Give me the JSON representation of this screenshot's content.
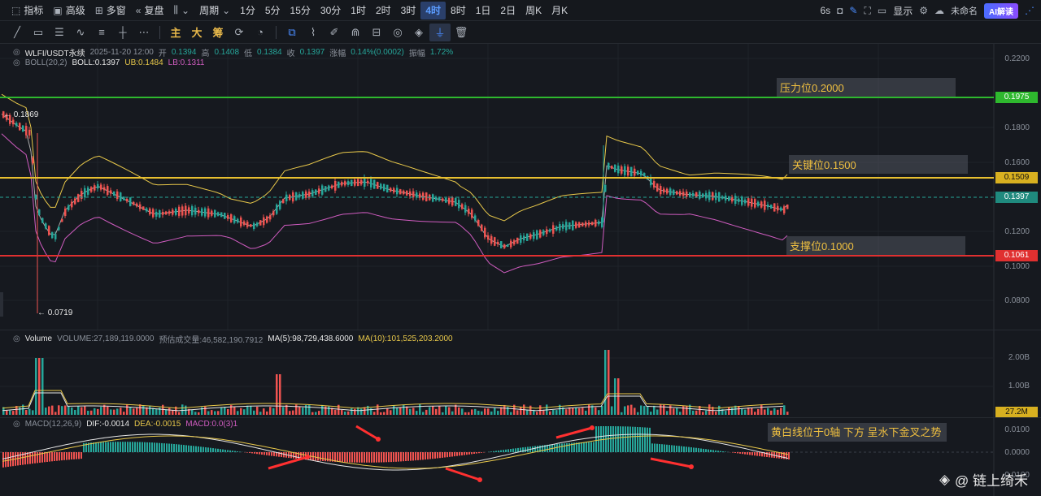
{
  "topbar": {
    "items": [
      {
        "icon": "chart-icon",
        "label": "指标"
      },
      {
        "icon": "calendar-icon",
        "label": "高级"
      },
      {
        "icon": "grid-icon",
        "label": "多窗"
      },
      {
        "icon": "rewind-icon",
        "label": "复盘"
      },
      {
        "icon": "candle-icon",
        "label": ""
      },
      {
        "icon": "",
        "label": "周期"
      }
    ],
    "intervals": [
      "1分",
      "5分",
      "15分",
      "30分",
      "1时",
      "2时",
      "3时",
      "4时",
      "8时",
      "1日",
      "2日",
      "周K",
      "月K"
    ],
    "active_interval": "4时",
    "right": {
      "countdown": "6s",
      "display": "显示",
      "name": "未命名",
      "ai": "AI解读"
    }
  },
  "toolbar": {
    "main_label": "主",
    "big_label": "大",
    "chip_label": "筹"
  },
  "chart": {
    "legend": {
      "symbol": "WLFI/USDT永续",
      "time": "2025-11-20 12:00",
      "open_label": "开",
      "open": "0.1394",
      "high_label": "高",
      "high": "0.1408",
      "low_label": "低",
      "low": "0.1384",
      "close_label": "收",
      "close": "0.1397",
      "chg_label": "涨幅",
      "chg": "0.14%(0.0002)",
      "amp_label": "振幅",
      "amp": "1.72%"
    },
    "boll": {
      "label": "BOLL(20,2)",
      "boll": "BOLL:0.1397",
      "ub": "UB:0.1484",
      "lb": "LB:0.1311"
    },
    "axis": [
      "0.2200",
      "0.1800",
      "0.1600",
      "0.1200",
      "0.1000",
      "0.0800"
    ],
    "tags": [
      {
        "value": "0.1975",
        "color": "#2eb82e"
      },
      {
        "value": "0.1509",
        "color": "#e8c030"
      },
      {
        "value": "0.1397",
        "color": "#26a69a"
      },
      {
        "value": "0.1061",
        "color": "#e03030"
      }
    ],
    "marks": {
      "high": "← 0.1869",
      "low": "← 0.0719"
    },
    "annotations": {
      "resistance": "压力位0.2000",
      "key": "关键位0.1500",
      "support": "支撑位0.1000"
    },
    "colors": {
      "up": "#26a69a",
      "down": "#ef5350",
      "mid": "#e6e6e6",
      "ub": "#e8c84a",
      "lb": "#d05cc0"
    }
  },
  "volume": {
    "label": "Volume",
    "vol": "VOLUME:27,189,119.0000",
    "est": "预估成交量:46,582,190.7912",
    "ma5": "MA(5):98,729,438.6000",
    "ma10": "MA(10):101,525,203.2000",
    "axis": [
      "2.00B",
      "1.00B"
    ],
    "tag": "27.2M"
  },
  "macd": {
    "label": "MACD(12,26,9)",
    "dif": "DIF:-0.0014",
    "dea": "DEA:-0.0015",
    "macd": "MACD:0.0(3)1",
    "axis": [
      "0.0100",
      "0.0000",
      "-0.0100"
    ],
    "note": "黄白线位于0轴 下方 呈水下金叉之势"
  },
  "watermark": "@ 链上绮禾"
}
